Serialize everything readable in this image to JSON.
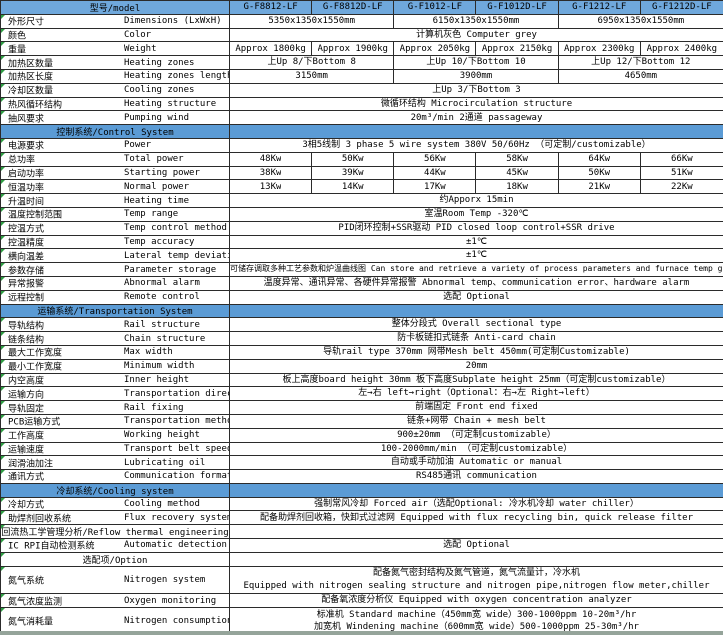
{
  "colors": {
    "header_blue": "#6fa8dc",
    "section_blue": "#5b9bd5",
    "flag_green": "#2f9e44",
    "strip_green": "#95a49a",
    "border": "#2b2b2b"
  },
  "header": {
    "title_cell": "型号/model"
  },
  "models": [
    "G-F8812-LF",
    "G-F8812D-LF",
    "G-F1012-LF",
    "G-F1012D-LF",
    "G-F1212-LF",
    "G-F1212D-LF"
  ],
  "rows": [
    {
      "t": "models"
    },
    {
      "t": "spec",
      "zh": "外形尺寸",
      "en": "Dimensions (LxWxH)",
      "cells": [
        {
          "span": 2,
          "lines": [
            "5350x1350x1550mm"
          ]
        },
        {
          "span": 2,
          "lines": [
            "6150x1350x1550mm"
          ]
        },
        {
          "span": 2,
          "lines": [
            "6950x1350x1550mm"
          ]
        }
      ]
    },
    {
      "t": "spec",
      "zh": "颜色",
      "en": "Color",
      "cells": [
        {
          "span": 6,
          "lines": [
            "计算机灰色 Computer grey"
          ]
        }
      ]
    },
    {
      "t": "spec",
      "zh": "重量",
      "en": "Weight",
      "cells": [
        {
          "span": 1,
          "lines": [
            "Approx 1800kg"
          ]
        },
        {
          "span": 1,
          "lines": [
            "Approx 1900kg"
          ]
        },
        {
          "span": 1,
          "lines": [
            "Approx 2050kg"
          ]
        },
        {
          "span": 1,
          "lines": [
            "Approx 2150kg"
          ]
        },
        {
          "span": 1,
          "lines": [
            "Approx 2300kg"
          ]
        },
        {
          "span": 1,
          "lines": [
            "Approx 2400kg"
          ]
        }
      ]
    },
    {
      "t": "spec",
      "zh": "加热区数量",
      "en": "Heating zones",
      "cells": [
        {
          "span": 2,
          "lines": [
            "上Up 8/下Bottom 8"
          ]
        },
        {
          "span": 2,
          "lines": [
            "上Up 10/下Bottom 10"
          ]
        },
        {
          "span": 2,
          "lines": [
            "上Up 12/下Bottom 12"
          ]
        }
      ]
    },
    {
      "t": "spec",
      "zh": "加热区长度",
      "en": "Heating zones length",
      "cells": [
        {
          "span": 2,
          "lines": [
            "3150mm"
          ]
        },
        {
          "span": 2,
          "lines": [
            "3900mm"
          ]
        },
        {
          "span": 2,
          "lines": [
            "4650mm"
          ]
        }
      ]
    },
    {
      "t": "spec",
      "zh": "冷却区数量",
      "en": "Cooling zones",
      "cells": [
        {
          "span": 6,
          "lines": [
            "上Up 3/下Bottom 3"
          ]
        }
      ]
    },
    {
      "t": "spec",
      "zh": "热风循环结构",
      "en": "Heating structure",
      "cells": [
        {
          "span": 6,
          "lines": [
            "微循环结构 Microcirculation structure"
          ]
        }
      ]
    },
    {
      "t": "spec",
      "zh": "抽风要求",
      "en": "Pumping wind",
      "cells": [
        {
          "span": 6,
          "lines": [
            "20m³/min 2通道 passageway"
          ]
        }
      ]
    },
    {
      "t": "section",
      "label": "控制系统/Control System"
    },
    {
      "t": "spec",
      "zh": "电源要求",
      "en": "Power",
      "cells": [
        {
          "span": 6,
          "lines": [
            "3相5线制 3 phase 5 wire system  380V 50/60Hz （可定制/customizable）"
          ]
        }
      ]
    },
    {
      "t": "spec",
      "zh": "总功率",
      "en": "Total power",
      "cells": [
        {
          "span": 1,
          "lines": [
            "48Kw"
          ]
        },
        {
          "span": 1,
          "lines": [
            "50Kw"
          ]
        },
        {
          "span": 1,
          "lines": [
            "56Kw"
          ]
        },
        {
          "span": 1,
          "lines": [
            "58Kw"
          ]
        },
        {
          "span": 1,
          "lines": [
            "64Kw"
          ]
        },
        {
          "span": 1,
          "lines": [
            "66Kw"
          ]
        }
      ]
    },
    {
      "t": "spec",
      "zh": "启动功率",
      "en": "Starting power",
      "cells": [
        {
          "span": 1,
          "lines": [
            "38Kw"
          ]
        },
        {
          "span": 1,
          "lines": [
            "39Kw"
          ]
        },
        {
          "span": 1,
          "lines": [
            "44Kw"
          ]
        },
        {
          "span": 1,
          "lines": [
            "45Kw"
          ]
        },
        {
          "span": 1,
          "lines": [
            "50Kw"
          ]
        },
        {
          "span": 1,
          "lines": [
            "51Kw"
          ]
        }
      ]
    },
    {
      "t": "spec",
      "zh": "恒温功率",
      "en": "Normal power",
      "cells": [
        {
          "span": 1,
          "lines": [
            "13Kw"
          ]
        },
        {
          "span": 1,
          "lines": [
            "14Kw"
          ]
        },
        {
          "span": 1,
          "lines": [
            "17Kw"
          ]
        },
        {
          "span": 1,
          "lines": [
            "18Kw"
          ]
        },
        {
          "span": 1,
          "lines": [
            "21Kw"
          ]
        },
        {
          "span": 1,
          "lines": [
            "22Kw"
          ]
        }
      ]
    },
    {
      "t": "spec",
      "zh": "升温时间",
      "en": "Heating time",
      "cells": [
        {
          "span": 6,
          "lines": [
            "约Apporx 15min"
          ]
        }
      ]
    },
    {
      "t": "spec",
      "zh": "温度控制范围",
      "en": "Temp range",
      "cells": [
        {
          "span": 6,
          "lines": [
            "室温Room Temp -320℃"
          ]
        }
      ]
    },
    {
      "t": "spec",
      "zh": "控温方式",
      "en": "Temp control method",
      "cells": [
        {
          "span": 6,
          "lines": [
            "PID闭环控制+SSR驱动 PID closed loop control+SSR drive"
          ]
        }
      ]
    },
    {
      "t": "spec",
      "zh": "控温精度",
      "en": "Temp accuracy",
      "cells": [
        {
          "span": 6,
          "lines": [
            "±1℃"
          ]
        }
      ]
    },
    {
      "t": "spec",
      "zh": "横向温差",
      "en": "Lateral temp deviation",
      "cells": [
        {
          "span": 6,
          "lines": [
            "±1℃"
          ]
        }
      ]
    },
    {
      "t": "spec",
      "zh": "参数存储",
      "en": "Parameter storage",
      "small": true,
      "cells": [
        {
          "span": 6,
          "lines": [
            "可储存调取多种工艺参数和炉温曲线图 Can store and retrieve a variety of process parameters and furnace temp graph"
          ]
        }
      ]
    },
    {
      "t": "spec",
      "zh": "异常报警",
      "en": "Abnormal alarm",
      "cells": [
        {
          "span": 6,
          "lines": [
            "温度异常、通讯异常、各硬件异常报警 Abnormal temp、communication error、hardware alarm"
          ]
        }
      ]
    },
    {
      "t": "spec",
      "zh": "远程控制",
      "en": "Remote control",
      "cells": [
        {
          "span": 6,
          "lines": [
            "选配 Optional"
          ]
        }
      ]
    },
    {
      "t": "section",
      "label": "运输系统/Transportation System"
    },
    {
      "t": "spec",
      "zh": "导轨结构",
      "en": "Rail structure",
      "cells": [
        {
          "span": 6,
          "lines": [
            "整体分段式 Overall sectional type"
          ]
        }
      ]
    },
    {
      "t": "spec",
      "zh": "链条结构",
      "en": "Chain structure",
      "cells": [
        {
          "span": 6,
          "lines": [
            "防卡板链扣式链条 Anti-card chain"
          ]
        }
      ]
    },
    {
      "t": "spec",
      "zh": "最大工作宽度",
      "en": "Max width",
      "cells": [
        {
          "span": 6,
          "lines": [
            "导轨rail type 370mm 网带Mesh belt 450mm(可定制Customizable)"
          ]
        }
      ]
    },
    {
      "t": "spec",
      "zh": "最小工作宽度",
      "en": "Minimum width",
      "cells": [
        {
          "span": 6,
          "lines": [
            "20mm"
          ]
        }
      ]
    },
    {
      "t": "spec",
      "zh": "内空高度",
      "en": "Inner height",
      "cells": [
        {
          "span": 6,
          "lines": [
            "板上高度board height 30mm 板下高度Subplate height 25mm（可定制customizable）"
          ]
        }
      ]
    },
    {
      "t": "spec",
      "zh": "运输方向",
      "en": "Transportation direction",
      "cells": [
        {
          "span": 6,
          "lines": [
            "左→右 left→right（Optional：右→左 Right→left）"
          ]
        }
      ]
    },
    {
      "t": "spec",
      "zh": "导轨固定",
      "en": "Rail fixing",
      "cells": [
        {
          "span": 6,
          "lines": [
            "前端固定 Front end fixed"
          ]
        }
      ]
    },
    {
      "t": "spec",
      "zh": "PCB运输方式",
      "en": "Transportation method",
      "cells": [
        {
          "span": 6,
          "lines": [
            "链条+网带 Chain + mesh belt"
          ]
        }
      ]
    },
    {
      "t": "spec",
      "zh": "工作高度",
      "en": "Working height",
      "cells": [
        {
          "span": 6,
          "lines": [
            "900±20mm （可定制customizable）"
          ]
        }
      ]
    },
    {
      "t": "spec",
      "zh": "运输速度",
      "en": "Transport belt speed",
      "cells": [
        {
          "span": 6,
          "lines": [
            "100-2000mm/min （可定制customizable）"
          ]
        }
      ]
    },
    {
      "t": "spec",
      "zh": "润滑油加注",
      "en": "Lubricating oil",
      "cells": [
        {
          "span": 6,
          "lines": [
            "自动或手动加油 Automatic or manual"
          ]
        }
      ]
    },
    {
      "t": "spec",
      "zh": "通讯方式",
      "en": "Communication format",
      "cells": [
        {
          "span": 6,
          "lines": [
            "RS485通讯 communication"
          ]
        }
      ]
    },
    {
      "t": "section",
      "label": "冷却系统/Cooling system"
    },
    {
      "t": "spec",
      "zh": "冷却方式",
      "en": "Cooling method",
      "cells": [
        {
          "span": 6,
          "lines": [
            "强制常风冷却 Forced air（选配Optional: 冷水机冷却 water chiller）"
          ]
        }
      ]
    },
    {
      "t": "spec",
      "zh": "助焊剂回收系统",
      "en": "Flux recovery system",
      "cells": [
        {
          "span": 6,
          "lines": [
            "配备助焊剂回收箱，快卸式过滤网 Equipped with flux recycling bin, quick release filter"
          ]
        }
      ]
    },
    {
      "t": "spanlabel",
      "label": "回流热工学管理分析/Reflow thermal engineering",
      "cells": [
        {
          "span": 6,
          "lines": [
            ""
          ]
        }
      ]
    },
    {
      "t": "spec",
      "zh": "IC RPI自动检测系统",
      "en": "Automatic detection system",
      "cells": [
        {
          "span": 6,
          "lines": [
            "选配 Optional"
          ]
        }
      ]
    },
    {
      "t": "spanlabel",
      "label": "选配项/Option",
      "cells": [
        {
          "span": 6,
          "lines": [
            ""
          ]
        }
      ]
    },
    {
      "t": "spec",
      "h": 2,
      "zh": "氮气系统",
      "en": "Nitrogen system",
      "cells": [
        {
          "span": 6,
          "lines": [
            "配备氮气密封结构及氮气管道，氮气流量计，冷水机",
            "Equipped with nitrogen sealing structure and nitrogen pipe,nitrogen flow meter,chiller"
          ]
        }
      ]
    },
    {
      "t": "spec",
      "zh": "氮气浓度监测",
      "en": "Oxygen monitoring",
      "cells": [
        {
          "span": 6,
          "lines": [
            "配备氧浓度分析仪 Equipped with oxygen concentration analyzer"
          ]
        }
      ]
    },
    {
      "t": "spec",
      "h": 2,
      "zh": "氮气消耗量",
      "en": "Nitrogen consumption",
      "cells": [
        {
          "span": 6,
          "lines": [
            "标准机 Standard machine（450mm宽 wide）300-1000ppm 10-20m³/hr",
            "加宽机 Windening machine（600mm宽 wide）500-1000ppm 25-30m³/hr"
          ]
        }
      ]
    }
  ]
}
